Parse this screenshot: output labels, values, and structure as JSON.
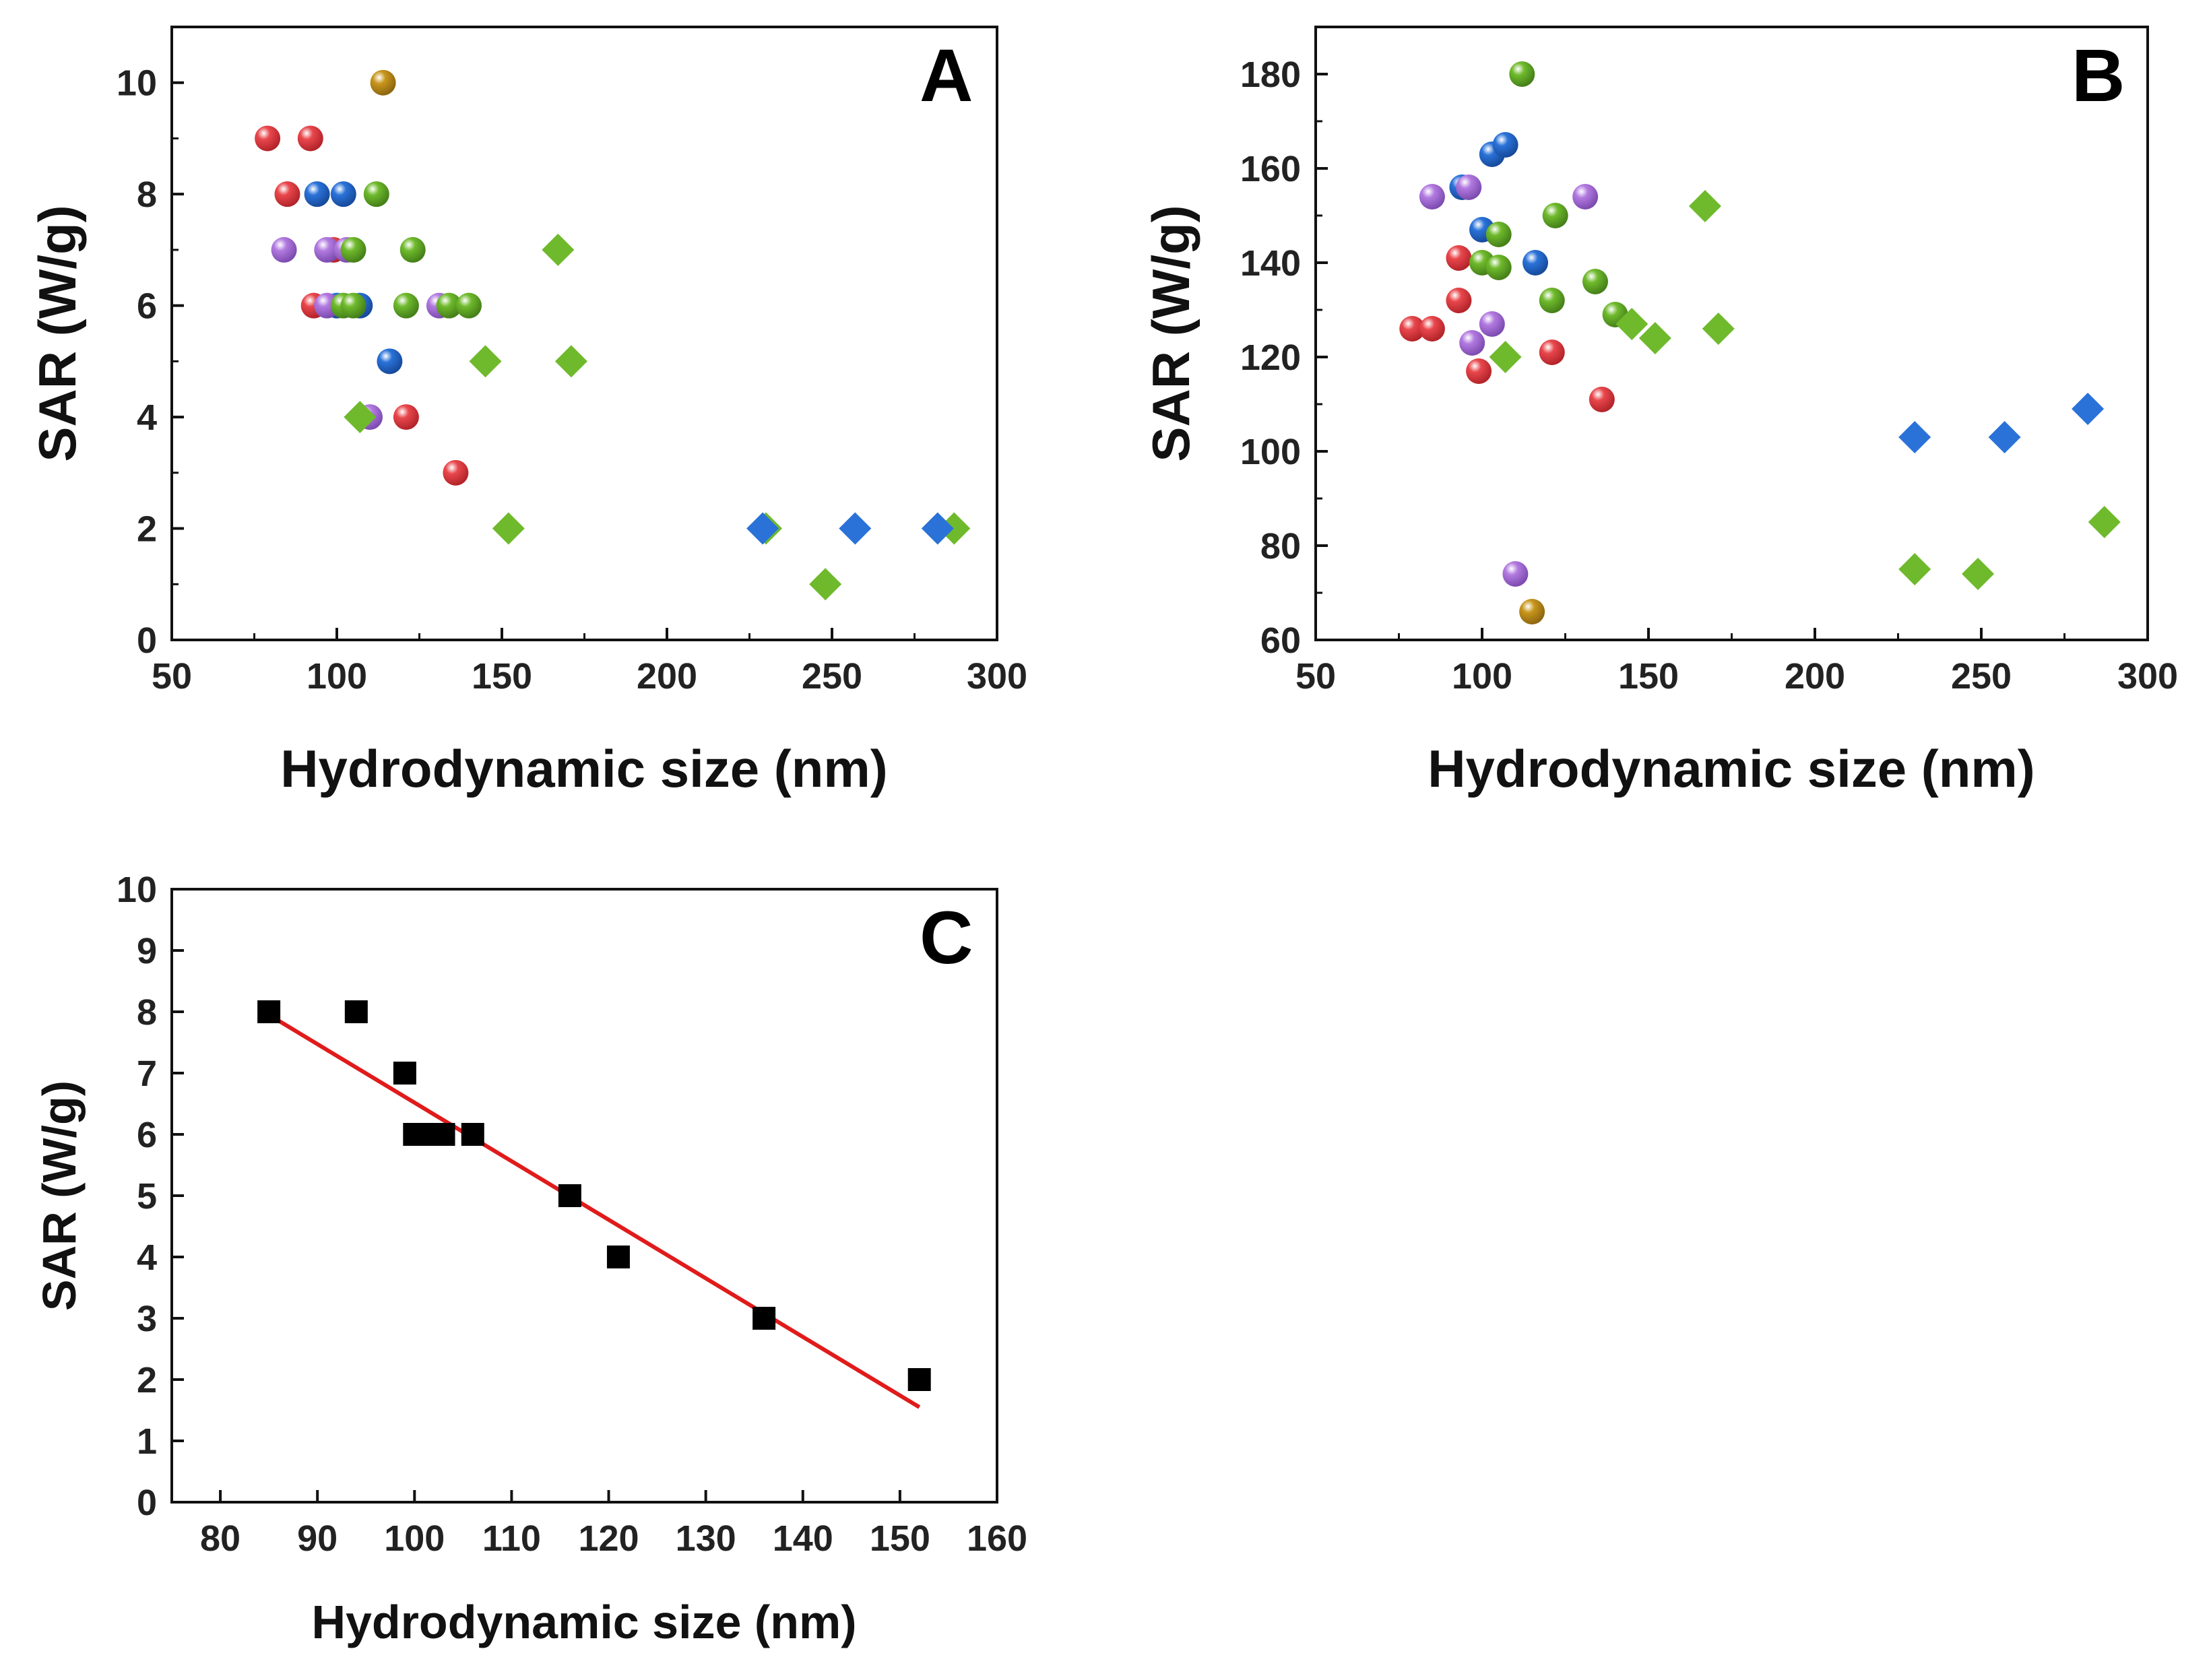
{
  "colors": {
    "red": "#e8474c",
    "blue": "#2a72d8",
    "purple": "#b27ae0",
    "green": "#6fba2c",
    "orange": "#c8961c",
    "black": "#000000",
    "fit": "#e01b1b"
  },
  "chart_data": [
    {
      "panel": "A",
      "type": "scatter",
      "xlabel": "Hydrodynamic size (nm)",
      "ylabel": "SAR (W/g)",
      "xlim": [
        50,
        300
      ],
      "ylim": [
        0,
        11
      ],
      "xticks": [
        50,
        100,
        150,
        200,
        250,
        300
      ],
      "yticks": [
        0,
        2,
        4,
        6,
        8,
        10
      ],
      "grid": false,
      "series": [
        {
          "color": "red",
          "marker": "sphere",
          "points": [
            [
              79,
              9
            ],
            [
              92,
              9
            ],
            [
              85,
              8
            ],
            [
              99,
              7
            ],
            [
              93,
              6
            ],
            [
              121,
              4
            ],
            [
              136,
              3
            ]
          ]
        },
        {
          "color": "blue",
          "marker": "sphere",
          "points": [
            [
              94,
              8
            ],
            [
              102,
              8
            ],
            [
              100,
              6
            ],
            [
              107,
              6
            ],
            [
              116,
              5
            ]
          ]
        },
        {
          "color": "purple",
          "marker": "sphere",
          "points": [
            [
              84,
              7
            ],
            [
              97,
              7
            ],
            [
              103,
              7
            ],
            [
              97,
              6
            ],
            [
              131,
              6
            ],
            [
              110,
              4
            ]
          ]
        },
        {
          "color": "green",
          "marker": "sphere",
          "points": [
            [
              112,
              8
            ],
            [
              105,
              7
            ],
            [
              123,
              7
            ],
            [
              102,
              6
            ],
            [
              105,
              6
            ],
            [
              121,
              6
            ],
            [
              134,
              6
            ],
            [
              140,
              6
            ]
          ]
        },
        {
          "color": "orange",
          "marker": "sphere",
          "points": [
            [
              114,
              10
            ]
          ]
        },
        {
          "color": "green",
          "marker": "diamond",
          "points": [
            [
              167,
              7
            ],
            [
              145,
              5
            ],
            [
              171,
              5
            ],
            [
              107,
              4
            ],
            [
              152,
              2
            ],
            [
              230,
              2
            ],
            [
              287,
              2
            ],
            [
              248,
              1
            ]
          ]
        },
        {
          "color": "blue",
          "marker": "diamond",
          "points": [
            [
              229,
              2
            ],
            [
              257,
              2
            ],
            [
              282,
              2
            ]
          ]
        }
      ]
    },
    {
      "panel": "B",
      "type": "scatter",
      "xlabel": "Hydrodynamic size (nm)",
      "ylabel": "SAR (W/g)",
      "xlim": [
        50,
        300
      ],
      "ylim": [
        60,
        190
      ],
      "xticks": [
        50,
        100,
        150,
        200,
        250,
        300
      ],
      "yticks": [
        60,
        80,
        100,
        120,
        140,
        160,
        180
      ],
      "grid": false,
      "series": [
        {
          "color": "red",
          "marker": "sphere",
          "points": [
            [
              93,
              141
            ],
            [
              93,
              132
            ],
            [
              79,
              126
            ],
            [
              85,
              126
            ],
            [
              99,
              117
            ],
            [
              121,
              121
            ],
            [
              136,
              111
            ]
          ]
        },
        {
          "color": "blue",
          "marker": "sphere",
          "points": [
            [
              103,
              163
            ],
            [
              107,
              165
            ],
            [
              94,
              156
            ],
            [
              100,
              147
            ],
            [
              116,
              140
            ]
          ]
        },
        {
          "color": "purple",
          "marker": "sphere",
          "points": [
            [
              85,
              154
            ],
            [
              96,
              156
            ],
            [
              131,
              154
            ],
            [
              103,
              127
            ],
            [
              97,
              123
            ],
            [
              110,
              74
            ]
          ]
        },
        {
          "color": "green",
          "marker": "sphere",
          "points": [
            [
              112,
              180
            ],
            [
              122,
              150
            ],
            [
              105,
              146
            ],
            [
              100,
              140
            ],
            [
              105,
              139
            ],
            [
              121,
              132
            ],
            [
              134,
              136
            ],
            [
              140,
              129
            ]
          ]
        },
        {
          "color": "orange",
          "marker": "sphere",
          "points": [
            [
              115,
              66
            ]
          ]
        },
        {
          "color": "green",
          "marker": "diamond",
          "points": [
            [
              167,
              152
            ],
            [
              171,
              126
            ],
            [
              145,
              127
            ],
            [
              152,
              124
            ],
            [
              107,
              120
            ],
            [
              230,
              75
            ],
            [
              249,
              74
            ],
            [
              287,
              85
            ]
          ]
        },
        {
          "color": "blue",
          "marker": "diamond",
          "points": [
            [
              230,
              103
            ],
            [
              257,
              103
            ],
            [
              282,
              109
            ]
          ]
        }
      ]
    },
    {
      "panel": "C",
      "type": "scatter",
      "xlabel": "Hydrodynamic size (nm)",
      "ylabel": "SAR (W/g)",
      "xlim": [
        75,
        160
      ],
      "ylim": [
        0,
        10
      ],
      "xticks": [
        80,
        90,
        100,
        110,
        120,
        130,
        140,
        150,
        160
      ],
      "yticks": [
        0,
        1,
        2,
        3,
        4,
        5,
        6,
        7,
        8,
        9,
        10
      ],
      "grid": false,
      "series": [
        {
          "color": "black",
          "marker": "square",
          "points": [
            [
              85,
              8
            ],
            [
              94,
              8
            ],
            [
              99,
              7
            ],
            [
              100,
              6
            ],
            [
              101,
              6
            ],
            [
              102,
              6
            ],
            [
              103,
              6
            ],
            [
              106,
              6
            ],
            [
              116,
              5
            ],
            [
              121,
              4
            ],
            [
              136,
              3
            ],
            [
              152,
              2
            ]
          ]
        }
      ],
      "fit_line": {
        "color": "fit",
        "x": [
          85,
          152
        ],
        "y": [
          7.95,
          1.55
        ]
      }
    }
  ]
}
